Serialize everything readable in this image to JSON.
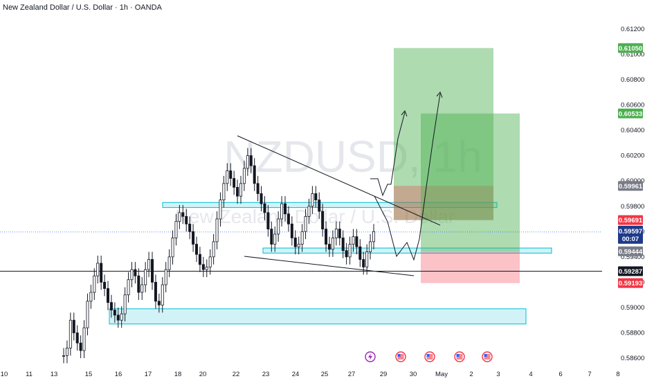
{
  "header": {
    "title": "New Zealand Dollar / U.S. Dollar · 1h · OANDA"
  },
  "watermark": {
    "symbol": "NZDUSD, 1h",
    "name": "New Zealand Dollar / U.S. Dollar"
  },
  "colors": {
    "up": "#131722",
    "down": "#131722",
    "zone": "#b2ebf2",
    "zone_border": "#00bcd4",
    "target": "#4caf50",
    "stop": "#f23645",
    "price_line": "#2962ff"
  },
  "chart_data": {
    "type": "candlestick",
    "symbol": "NZDUSD",
    "timeframe": "1h",
    "source": "OANDA",
    "ylim": [
      0.5854,
      0.6132
    ],
    "y_ticks": [
      "0.61200",
      "0.61000",
      "0.60800",
      "0.60600",
      "0.60400",
      "0.60200",
      "0.60000",
      "0.59800",
      "0.59600",
      "0.59400",
      "0.59200",
      "0.59000",
      "0.58800",
      "0.58600"
    ],
    "x_ticks": [
      {
        "label": "10",
        "idx": 0
      },
      {
        "label": "11",
        "idx": 1
      },
      {
        "label": "13",
        "idx": 2
      },
      {
        "label": "15",
        "idx": 3
      },
      {
        "label": "16",
        "idx": 4
      },
      {
        "label": "17",
        "idx": 5
      },
      {
        "label": "18",
        "idx": 6
      },
      {
        "label": "20",
        "idx": 7
      },
      {
        "label": "22",
        "idx": 8
      },
      {
        "label": "23",
        "idx": 9
      },
      {
        "label": "24",
        "idx": 10
      },
      {
        "label": "25",
        "idx": 11
      },
      {
        "label": "27",
        "idx": 12
      },
      {
        "label": "29",
        "idx": 13
      },
      {
        "label": "30",
        "idx": 14
      },
      {
        "label": "May",
        "idx": 15
      },
      {
        "label": "2",
        "idx": 16
      },
      {
        "label": "3",
        "idx": 17
      },
      {
        "label": "4",
        "idx": 18
      },
      {
        "label": "6",
        "idx": 19
      },
      {
        "label": "7",
        "idx": 20
      },
      {
        "label": "8",
        "idx": 21
      }
    ],
    "series_close": [
      0.5862,
      0.5868,
      0.589,
      0.588,
      0.5872,
      0.5866,
      0.5884,
      0.5905,
      0.5912,
      0.5925,
      0.5935,
      0.592,
      0.5915,
      0.5904,
      0.5898,
      0.5894,
      0.589,
      0.5895,
      0.591,
      0.5922,
      0.593,
      0.5925,
      0.5912,
      0.5918,
      0.593,
      0.5938,
      0.592,
      0.5905,
      0.5902,
      0.5918,
      0.593,
      0.594,
      0.5955,
      0.5968,
      0.5975,
      0.5972,
      0.5966,
      0.596,
      0.595,
      0.5942,
      0.5934,
      0.593,
      0.5932,
      0.594,
      0.5952,
      0.597,
      0.5985,
      0.5998,
      0.6008,
      0.6002,
      0.5995,
      0.5988,
      0.5998,
      0.601,
      0.602,
      0.6012,
      0.5998,
      0.599,
      0.5982,
      0.5975,
      0.5962,
      0.595,
      0.5958,
      0.597,
      0.5982,
      0.5974,
      0.5966,
      0.5955,
      0.5948,
      0.595,
      0.596,
      0.5972,
      0.598,
      0.599,
      0.5985,
      0.5976,
      0.5962,
      0.595,
      0.5946,
      0.5955,
      0.5962,
      0.5955,
      0.5945,
      0.594,
      0.595,
      0.5956,
      0.5948,
      0.5938,
      0.5932,
      0.5944,
      0.5952,
      0.596
    ],
    "last_price": "0.59597",
    "countdown": "00:07",
    "price_tags": [
      {
        "label": "0.61050",
        "price": 0.6105,
        "color": "#4caf50"
      },
      {
        "label": "0.60533",
        "price": 0.60533,
        "color": "#4caf50"
      },
      {
        "label": "0.59961",
        "price": 0.59961,
        "color": "#787b86"
      },
      {
        "label": "0.59691",
        "price": 0.59691,
        "color": "#f23645"
      },
      {
        "label": "0.59444",
        "price": 0.59444,
        "color": "#787b86"
      },
      {
        "label": "0.59287",
        "price": 0.59287,
        "color": "#131722"
      },
      {
        "label": "0.59193",
        "price": 0.59193,
        "color": "#f23645"
      }
    ],
    "horizontal_line": 0.59287,
    "zones": [
      {
        "from": 0.5979,
        "to": 0.5983
      },
      {
        "from": 0.5943,
        "to": 0.5947
      },
      {
        "from": 0.5887,
        "to": 0.5899
      }
    ],
    "positions": [
      {
        "entry": 0.59691,
        "target": 0.6105,
        "stop": 0.59961
      },
      {
        "entry": 0.59444,
        "target": 0.60533,
        "stop": 0.59193
      }
    ]
  }
}
